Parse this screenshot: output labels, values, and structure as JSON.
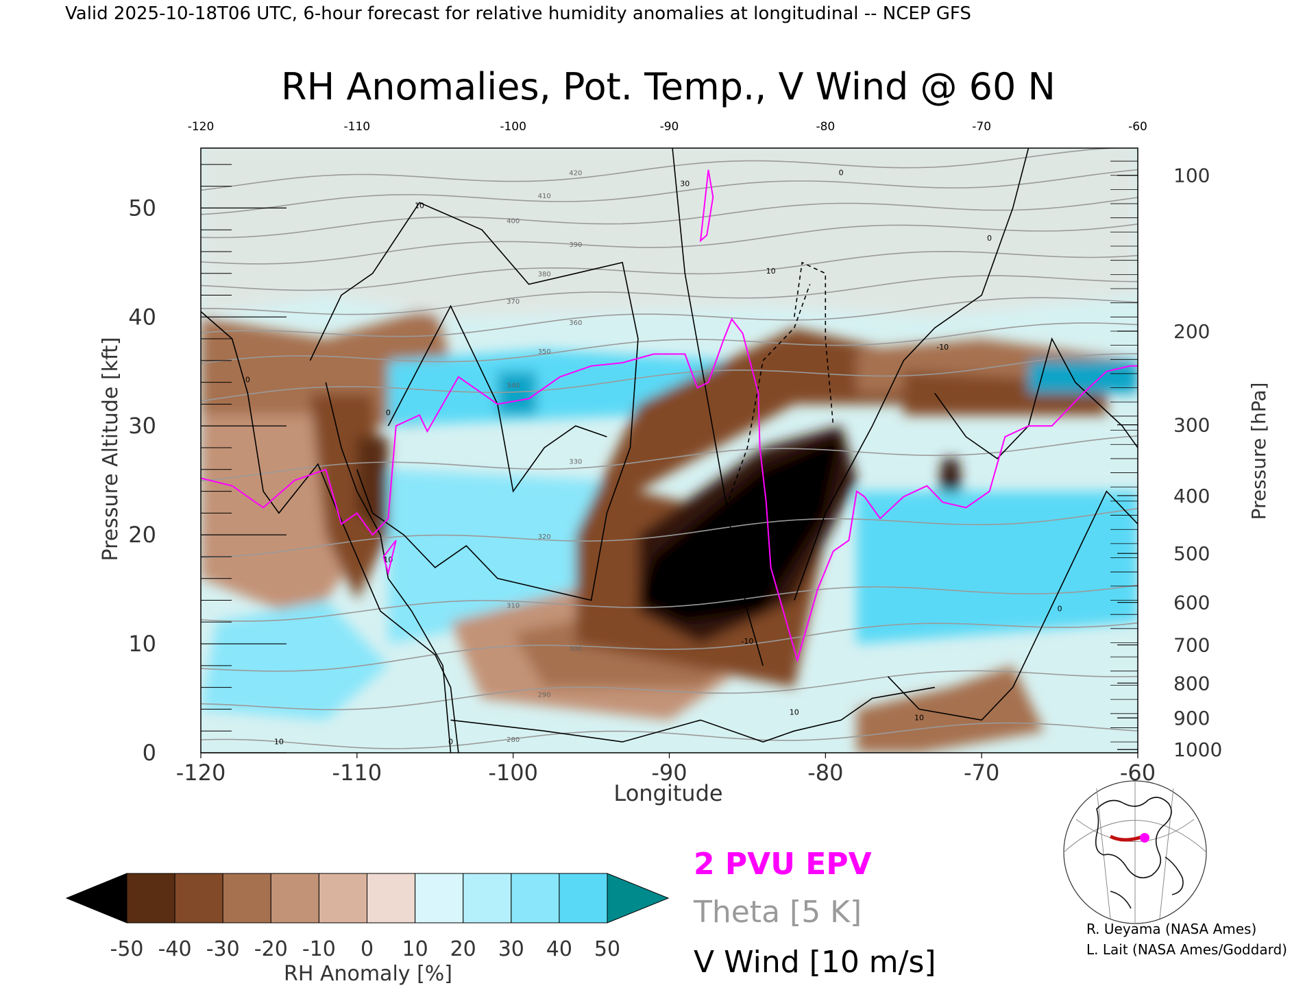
{
  "header": "Valid 2025-10-18T06 UTC, 6-hour forecast for relative humidity anomalies at longitudinal -- NCEP GFS",
  "colors": {
    "epv": "#ff00ff",
    "theta": "#9a9a9a",
    "vwind": "#000000",
    "colorbar": [
      "#000000",
      "#321807",
      "#5a2e12",
      "#824a28",
      "#a6714f",
      "#c39377",
      "#dab39f",
      "#eedad0",
      "#d8f6fb",
      "#b4f0fb",
      "#8ae6fa",
      "#5ad9f6",
      "#2ac2ea",
      "#0aa4c8",
      "#008a8c"
    ]
  },
  "chart_data": {
    "type": "heatmap",
    "title": "RH Anomalies, Pot. Temp., V Wind @ 60 N",
    "xlabel": "Longitude",
    "ylabel": "Pressure Altitude [kft]",
    "y2label": "Pressure [hPa]",
    "xlim": [
      -120,
      -60
    ],
    "ylim": [
      0,
      55.5
    ],
    "x_ticks": [
      "-120",
      "-110",
      "-100",
      "-90",
      "-80",
      "-70",
      "-60"
    ],
    "x_ticks_top": [
      "-120",
      "-110",
      "-100",
      "-90",
      "-80",
      "-70",
      "-60"
    ],
    "y_ticks": [
      "0",
      "10",
      "20",
      "30",
      "40",
      "50"
    ],
    "pressure_ticks": [
      {
        "label": "100",
        "kft": 53.0
      },
      {
        "label": "200",
        "kft": 38.7
      },
      {
        "label": "300",
        "kft": 30.1
      },
      {
        "label": "400",
        "kft": 23.6
      },
      {
        "label": "500",
        "kft": 18.3
      },
      {
        "label": "600",
        "kft": 13.8
      },
      {
        "label": "700",
        "kft": 9.9
      },
      {
        "label": "800",
        "kft": 6.4
      },
      {
        "label": "900",
        "kft": 3.2
      },
      {
        "label": "1000",
        "kft": 0.3
      }
    ],
    "theta_levels": [
      {
        "k": 280,
        "base": 0.6,
        "slope": 0.03
      },
      {
        "k": 290,
        "base": 4.0,
        "slope": 0.06
      },
      {
        "k": 300,
        "base": 7.6,
        "slope": 0.08
      },
      {
        "k": 310,
        "base": 12.5,
        "slope": 0.05
      },
      {
        "k": 320,
        "base": 18.5,
        "slope": 0.06
      },
      {
        "k": 330,
        "base": 25.5,
        "slope": 0.05
      },
      {
        "k": 340,
        "base": 32.5,
        "slope": 0.06
      },
      {
        "k": 350,
        "base": 35.5,
        "slope": 0.06
      },
      {
        "k": 360,
        "base": 38.0,
        "slope": 0.06
      },
      {
        "k": 370,
        "base": 40.2,
        "slope": 0.06
      },
      {
        "k": 380,
        "base": 42.6,
        "slope": 0.06
      },
      {
        "k": 390,
        "base": 45.2,
        "slope": 0.06
      },
      {
        "k": 400,
        "base": 47.8,
        "slope": 0.05
      },
      {
        "k": 410,
        "base": 50.0,
        "slope": 0.05
      },
      {
        "k": 420,
        "base": 52.0,
        "slope": 0.05
      }
    ],
    "epv_2pvu": [
      [
        -120,
        25.2
      ],
      [
        -118,
        24.5
      ],
      [
        -116,
        22.5
      ],
      [
        -114,
        25
      ],
      [
        -112,
        26
      ],
      [
        -111,
        21
      ],
      [
        -110,
        22
      ],
      [
        -109,
        20
      ],
      [
        -108,
        21.5
      ],
      [
        -107.5,
        30
      ],
      [
        -106,
        31
      ],
      [
        -105.5,
        29.5
      ],
      [
        -104.5,
        32
      ],
      [
        -103.5,
        34.5
      ],
      [
        -103,
        34
      ],
      [
        -101,
        32
      ],
      [
        -99,
        32.5
      ],
      [
        -97,
        34.5
      ],
      [
        -95,
        35.5
      ],
      [
        -93,
        35.8
      ],
      [
        -91,
        36.6
      ],
      [
        -89,
        36.6
      ],
      [
        -88.2,
        33.5
      ],
      [
        -87.5,
        34
      ],
      [
        -86.5,
        38
      ],
      [
        -86,
        39.8
      ],
      [
        -85.3,
        38.5
      ],
      [
        -84.3,
        33
      ],
      [
        -84.2,
        28
      ],
      [
        -83.8,
        23
      ],
      [
        -83.5,
        17
      ],
      [
        -82.5,
        12
      ],
      [
        -81.8,
        8.5
      ],
      [
        -80.5,
        15
      ],
      [
        -79.5,
        18.5
      ],
      [
        -78.5,
        19.5
      ],
      [
        -78,
        24
      ],
      [
        -77.5,
        23.5
      ],
      [
        -76.5,
        21.5
      ],
      [
        -75,
        23.5
      ],
      [
        -73.5,
        24.5
      ],
      [
        -72.5,
        23
      ],
      [
        -71,
        22.5
      ],
      [
        -69.5,
        24
      ],
      [
        -68.5,
        29
      ],
      [
        -67,
        30
      ],
      [
        -65.5,
        30
      ],
      [
        -64.5,
        31.5
      ],
      [
        -63.5,
        33
      ],
      [
        -62,
        35
      ],
      [
        -60.5,
        35.5
      ],
      [
        -60,
        35.5
      ]
    ],
    "v_wind_labels": [
      "0",
      "0",
      "10",
      "30",
      "10",
      "0",
      "0",
      "10",
      "-10",
      "0",
      "10",
      "0",
      "10",
      "10",
      "-10"
    ]
  },
  "legend": {
    "epv_label": "2 PVU EPV",
    "theta_label": "Theta [5 K]",
    "wind_label": "V Wind [10 m/s]"
  },
  "colorbar": {
    "title": "RH Anomaly [%]",
    "ticks": [
      "-50",
      "-40",
      "-30",
      "-20",
      "-10",
      "0",
      "10",
      "20",
      "30",
      "40",
      "50"
    ]
  },
  "credits": {
    "line1": "R. Ueyama (NASA Ames)",
    "line2": "L. Lait (NASA Ames/Goddard)"
  }
}
